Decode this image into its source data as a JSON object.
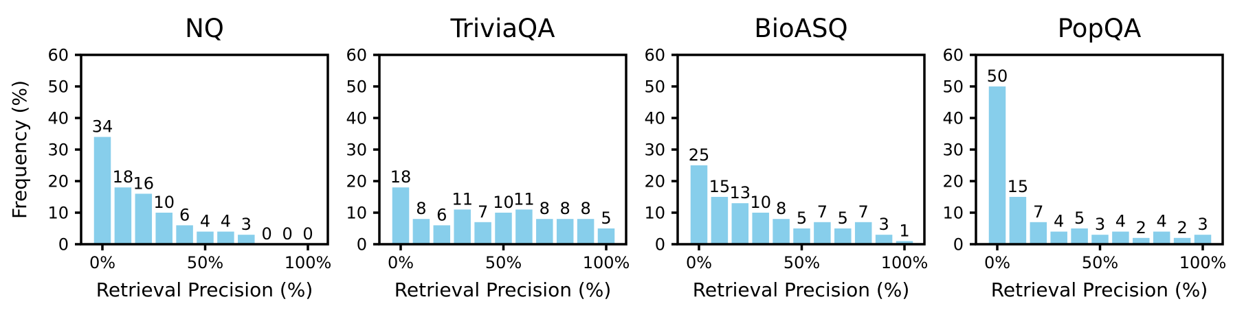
{
  "figure": {
    "background_color": "#ffffff",
    "axis_color": "#000000",
    "text_color": "#000000",
    "bar_color": "#87CEEB",
    "ylabel": "Frequency (%)",
    "xlabel": "Retrieval Precision (%)"
  },
  "chart_data": [
    {
      "type": "bar",
      "title": "NQ",
      "xlabel": "Retrieval Precision (%)",
      "ylabel": "Frequency (%)",
      "categories": [
        0,
        10,
        20,
        30,
        40,
        50,
        60,
        70,
        80,
        90,
        100
      ],
      "values": [
        34,
        18,
        16,
        10,
        6,
        4,
        4,
        3,
        0,
        0,
        0
      ],
      "bar_labels": [
        "34",
        "18",
        "16",
        "10",
        "6",
        "4",
        "4",
        "3",
        "0",
        "0",
        "0"
      ],
      "xtick_positions": [
        0,
        50,
        100
      ],
      "xtick_labels": [
        "0%",
        "50%",
        "100%"
      ],
      "yticks": [
        0,
        10,
        20,
        30,
        40,
        50,
        60
      ],
      "ylim": [
        0,
        60
      ],
      "grid": false,
      "legend": null,
      "bar_color": "#87CEEB"
    },
    {
      "type": "bar",
      "title": "TriviaQA",
      "xlabel": "Retrieval Precision (%)",
      "ylabel": "",
      "categories": [
        0,
        10,
        20,
        30,
        40,
        50,
        60,
        70,
        80,
        90,
        100
      ],
      "values": [
        18,
        8,
        6,
        11,
        7,
        10,
        11,
        8,
        8,
        8,
        5
      ],
      "bar_labels": [
        "18",
        "8",
        "6",
        "11",
        "7",
        "10",
        "11",
        "8",
        "8",
        "8",
        "5"
      ],
      "xtick_positions": [
        0,
        50,
        100
      ],
      "xtick_labels": [
        "0%",
        "50%",
        "100%"
      ],
      "yticks": [
        0,
        10,
        20,
        30,
        40,
        50,
        60
      ],
      "ylim": [
        0,
        60
      ],
      "grid": false,
      "legend": null,
      "bar_color": "#87CEEB"
    },
    {
      "type": "bar",
      "title": "BioASQ",
      "xlabel": "Retrieval Precision (%)",
      "ylabel": "",
      "categories": [
        0,
        10,
        20,
        30,
        40,
        50,
        60,
        70,
        80,
        90,
        100
      ],
      "values": [
        25,
        15,
        13,
        10,
        8,
        5,
        7,
        5,
        7,
        3,
        1
      ],
      "bar_labels": [
        "25",
        "15",
        "13",
        "10",
        "8",
        "5",
        "7",
        "5",
        "7",
        "3",
        "1"
      ],
      "xtick_positions": [
        0,
        50,
        100
      ],
      "xtick_labels": [
        "0%",
        "50%",
        "100%"
      ],
      "yticks": [
        0,
        10,
        20,
        30,
        40,
        50,
        60
      ],
      "ylim": [
        0,
        60
      ],
      "grid": false,
      "legend": null,
      "bar_color": "#87CEEB"
    },
    {
      "type": "bar",
      "title": "PopQA",
      "xlabel": "Retrieval Precision (%)",
      "ylabel": "",
      "categories": [
        0,
        10,
        20,
        30,
        40,
        50,
        60,
        70,
        80,
        90,
        100
      ],
      "values": [
        50,
        15,
        7,
        4,
        5,
        3,
        4,
        2,
        4,
        2,
        3
      ],
      "bar_labels": [
        "50",
        "15",
        "7",
        "4",
        "5",
        "3",
        "4",
        "2",
        "4",
        "2",
        "3"
      ],
      "xtick_positions": [
        0,
        50,
        100
      ],
      "xtick_labels": [
        "0%",
        "50%",
        "100%"
      ],
      "yticks": [
        0,
        10,
        20,
        30,
        40,
        50,
        60
      ],
      "ylim": [
        0,
        60
      ],
      "grid": false,
      "legend": null,
      "bar_color": "#87CEEB"
    }
  ]
}
